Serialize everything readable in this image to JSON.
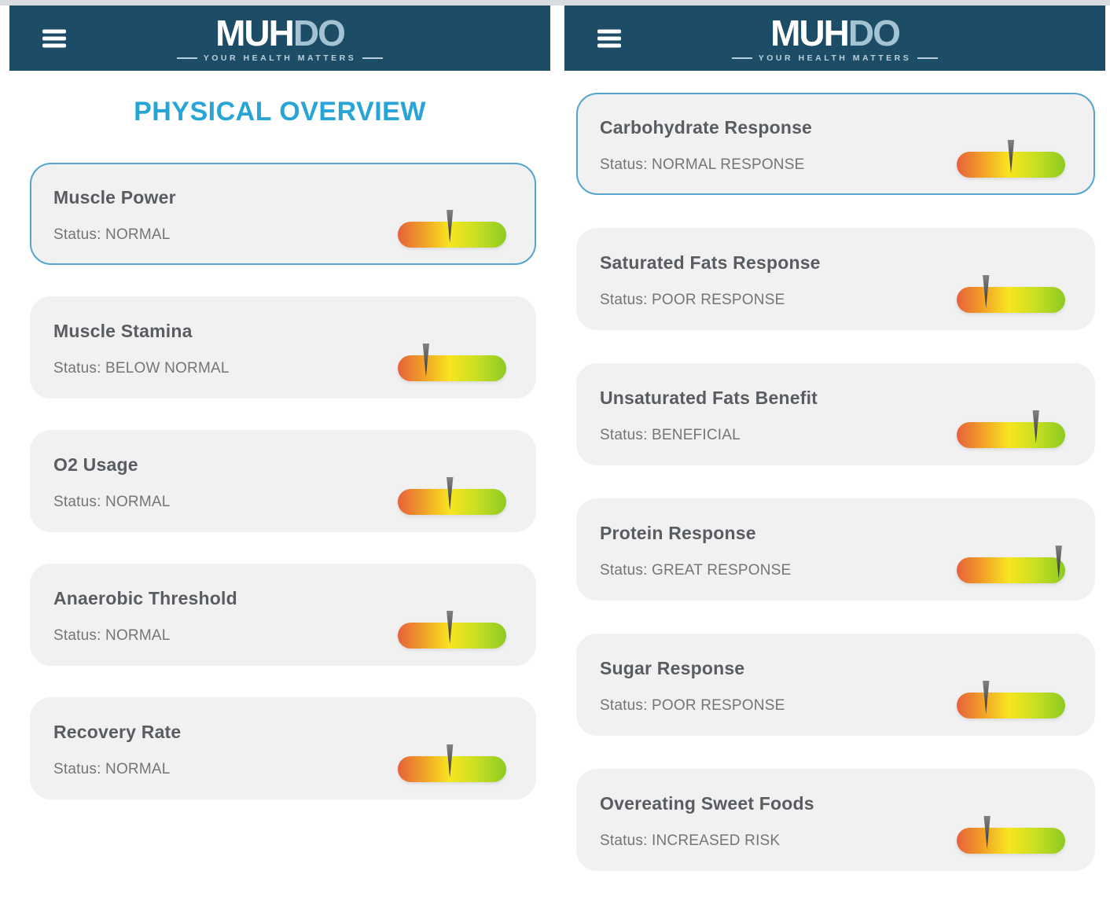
{
  "colors": {
    "header_bg": "#1d4d66",
    "page_title": "#28a5d6",
    "card_bg": "#f1f1f2",
    "highlight_border": "#54a5ce",
    "gauge_gradient": [
      "#e7603a",
      "#f09c28",
      "#f8e51f",
      "#cadf23",
      "#8ccb22"
    ],
    "needle": "#2e2e2e"
  },
  "header": {
    "brand_primary": "MUH",
    "brand_secondary": "DO",
    "tagline": "YOUR HEALTH MATTERS",
    "menu_icon": "hamburger-icon"
  },
  "left_panel": {
    "title": "PHYSICAL OVERVIEW",
    "cards": [
      {
        "title": "Muscle Power",
        "status_text": "Status: NORMAL",
        "gauge_percent": 48,
        "highlighted": true
      },
      {
        "title": "Muscle Stamina",
        "status_text": "Status: BELOW NORMAL",
        "gauge_percent": 26,
        "highlighted": false
      },
      {
        "title": "O2 Usage",
        "status_text": "Status: NORMAL",
        "gauge_percent": 48,
        "highlighted": false
      },
      {
        "title": "Anaerobic Threshold",
        "status_text": "Status: NORMAL",
        "gauge_percent": 48,
        "highlighted": false
      },
      {
        "title": "Recovery Rate",
        "status_text": "Status: NORMAL",
        "gauge_percent": 48,
        "highlighted": false
      }
    ]
  },
  "right_panel": {
    "cards": [
      {
        "title": "Carbohydrate Response",
        "status_text": "Status: NORMAL RESPONSE",
        "gauge_percent": 50,
        "highlighted": true
      },
      {
        "title": "Saturated Fats Response",
        "status_text": "Status: POOR RESPONSE",
        "gauge_percent": 27,
        "highlighted": false
      },
      {
        "title": "Unsaturated Fats Benefit",
        "status_text": "Status: BENEFICIAL",
        "gauge_percent": 73,
        "highlighted": false
      },
      {
        "title": "Protein Response",
        "status_text": "Status: GREAT RESPONSE",
        "gauge_percent": 94,
        "highlighted": false
      },
      {
        "title": "Sugar Response",
        "status_text": "Status: POOR RESPONSE",
        "gauge_percent": 27,
        "highlighted": false
      },
      {
        "title": "Overeating Sweet Foods",
        "status_text": "Status: INCREASED RISK",
        "gauge_percent": 28,
        "highlighted": false
      }
    ]
  }
}
